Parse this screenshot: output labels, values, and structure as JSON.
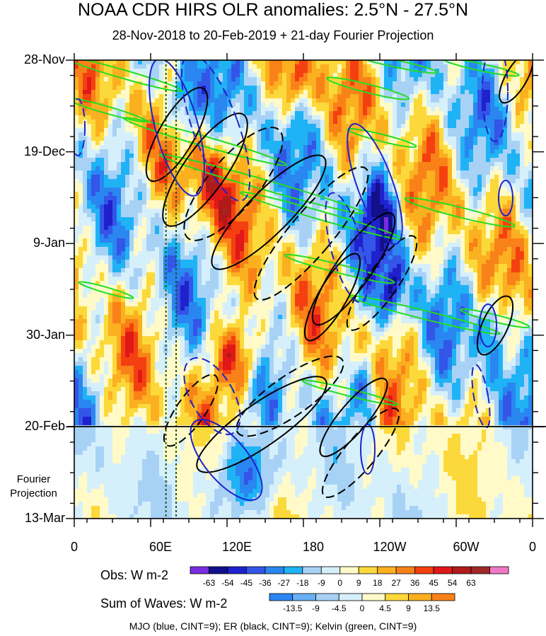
{
  "chart_data": {
    "type": "heatmap",
    "title": "NOAA CDR HIRS OLR anomalies: 2.5°N - 27.5°N",
    "subtitle": "28-Nov-2018 to 20-Feb-2019 + 21-day Fourier Projection",
    "x_axis": {
      "ticks": [
        "0",
        "60E",
        "120E",
        "180",
        "120W",
        "60W",
        "0"
      ],
      "range_deg_east": [
        0,
        360
      ]
    },
    "y_axis": {
      "ticks": [
        "28-Nov",
        "19-Dec",
        "9-Jan",
        "30-Jan",
        "20-Feb",
        "13-Mar"
      ],
      "range_days": [
        0,
        105
      ],
      "direction": "top-to-bottom"
    },
    "projection_label_line1": "Fourier",
    "projection_label_line2": "Projection",
    "projection_start": "20-Feb",
    "obs_colorbar": {
      "title": "Obs: W m-2",
      "labels": [
        "-63",
        "-54",
        "-45",
        "-36",
        "-27",
        "-18",
        "-9",
        "0",
        "9",
        "18",
        "27",
        "36",
        "45",
        "54",
        "63"
      ],
      "colors": [
        "#7a2ce0",
        "#12108a",
        "#1f22cc",
        "#3355e8",
        "#2a86f0",
        "#1fb3f5",
        "#a8d2f5",
        "#d6f0fb",
        "#fffac8",
        "#fcd93a",
        "#fbb020",
        "#f98218",
        "#f44010",
        "#e01818",
        "#b01a18",
        "#a02828",
        "#f078c8"
      ]
    },
    "waves_colorbar": {
      "title": "Sum of Waves: W m-2",
      "labels": [
        "-13.5",
        "-9",
        "-4.5",
        "0",
        "4.5",
        "9",
        "13.5"
      ],
      "colors": [
        "#2a86f0",
        "#6ab0f4",
        "#a8d2f5",
        "#d6f0fb",
        "#fffac8",
        "#fcd93a",
        "#fbb020",
        "#f98218"
      ]
    },
    "contour_legend": "MJO (blue, CINT=9); ER (black, CINT=9); Kelvin (green, CINT=9)",
    "series": [
      {
        "name": "MJO",
        "color": "#1f22cc",
        "cint": 9
      },
      {
        "name": "ER",
        "color": "#000000",
        "cint": 9
      },
      {
        "name": "Kelvin",
        "color": "#22dd22",
        "cint": 9
      }
    ],
    "reference_lines_lon_e": [
      72,
      80
    ]
  }
}
